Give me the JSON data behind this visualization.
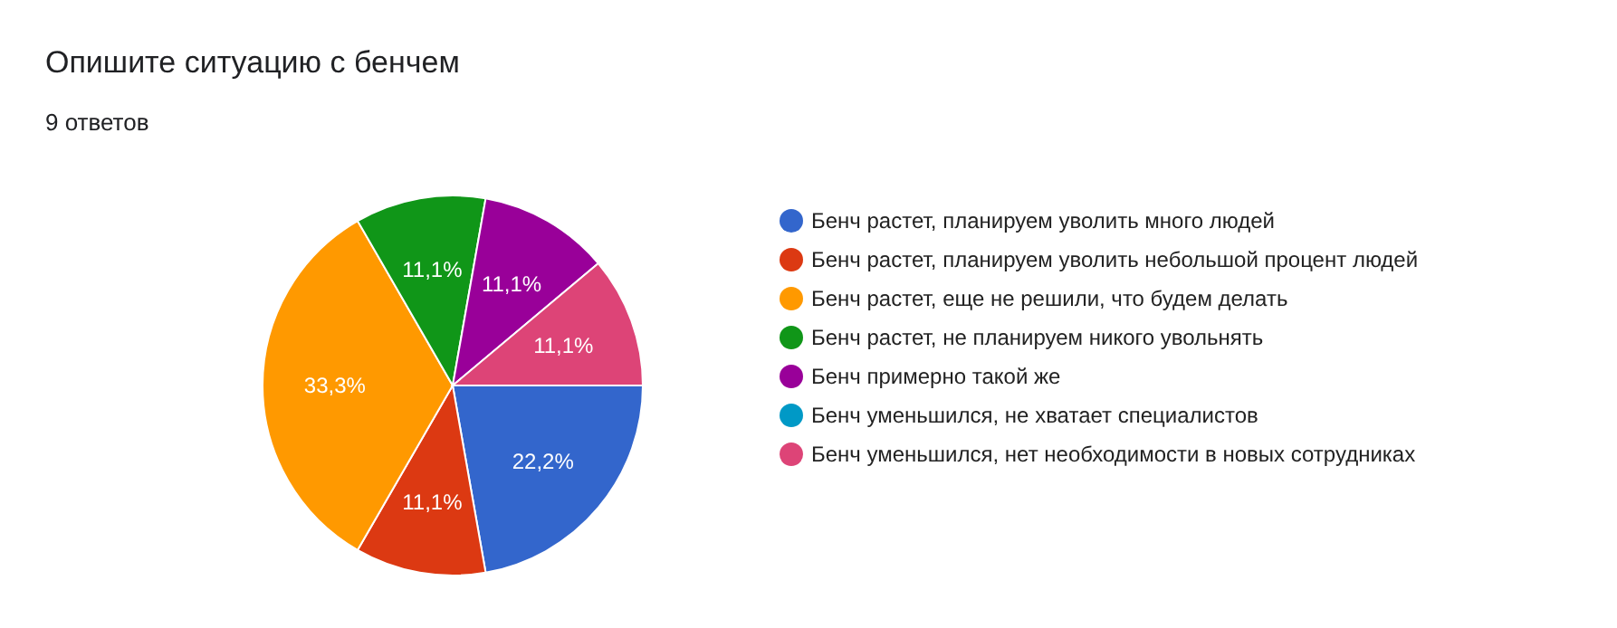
{
  "chart_data": {
    "type": "pie",
    "title": "Опишите ситуацию с бенчем",
    "subtitle": "9 ответов",
    "categories": [
      "Бенч растет, планируем уволить много людей",
      "Бенч растет, планируем уволить небольшой процент людей",
      "Бенч растет, еще не решили, что будем делать",
      "Бенч растет, не планируем никого увольнять",
      "Бенч примерно такой же",
      "Бенч уменьшился, не хватает специалистов",
      "Бенч уменьшился, нет необходимости в новых сотрудниках"
    ],
    "values": [
      22.2,
      11.1,
      33.3,
      11.1,
      11.1,
      0,
      11.1
    ],
    "colors": [
      "#3366cc",
      "#dc3912",
      "#ff9900",
      "#109618",
      "#990099",
      "#0099c6",
      "#dd4477"
    ],
    "value_labels": [
      "22,2%",
      "11,1%",
      "33,3%",
      "11,1%",
      "11,1%",
      null,
      "11,1%"
    ],
    "legend": "right"
  }
}
